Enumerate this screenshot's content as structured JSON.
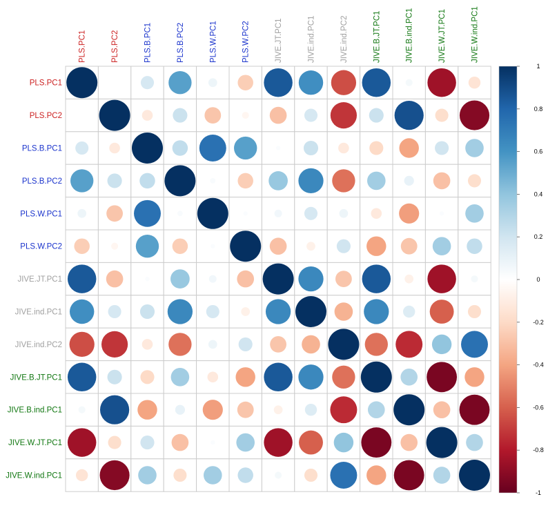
{
  "chart_data": {
    "type": "correlation-matrix",
    "variables": [
      "PLS.PC1",
      "PLS.PC2",
      "PLS.B.PC1",
      "PLS.B.PC2",
      "PLS.W.PC1",
      "PLS.W.PC2",
      "JIVE.JT.PC1",
      "JIVE.ind.PC1",
      "JIVE.ind.PC2",
      "JIVE.B.JT.PC1",
      "JIVE.B.ind.PC1",
      "JIVE.W.JT.PC1",
      "JIVE.W.ind.PC1"
    ],
    "label_colors": [
      "#cc2222",
      "#cc2222",
      "#1a33cc",
      "#1a33cc",
      "#1a33cc",
      "#1a33cc",
      "#a0a0a0",
      "#a0a0a0",
      "#a0a0a0",
      "#117711",
      "#117711",
      "#117711",
      "#117711"
    ],
    "matrix": [
      [
        1.0,
        0.0,
        0.18,
        0.55,
        0.08,
        -0.25,
        0.85,
        0.62,
        -0.65,
        0.85,
        0.05,
        -0.85,
        -0.15
      ],
      [
        0.0,
        1.0,
        -0.12,
        0.22,
        -0.28,
        -0.05,
        -0.3,
        0.18,
        -0.72,
        0.22,
        0.88,
        -0.18,
        -0.92
      ],
      [
        0.18,
        -0.12,
        1.0,
        0.25,
        0.75,
        0.55,
        0.02,
        0.22,
        -0.12,
        -0.2,
        -0.4,
        0.2,
        0.35
      ],
      [
        0.55,
        0.22,
        0.25,
        1.0,
        0.03,
        -0.25,
        0.38,
        0.65,
        -0.55,
        0.35,
        0.1,
        -0.3,
        -0.18
      ],
      [
        0.08,
        -0.28,
        0.75,
        0.03,
        1.0,
        0.02,
        0.06,
        0.18,
        0.08,
        -0.12,
        -0.42,
        0.02,
        0.35
      ],
      [
        -0.25,
        -0.05,
        0.55,
        -0.25,
        0.02,
        1.0,
        -0.3,
        -0.08,
        0.2,
        -0.4,
        -0.28,
        0.35,
        0.25
      ],
      [
        0.85,
        -0.3,
        0.02,
        0.38,
        0.06,
        -0.3,
        1.0,
        0.65,
        -0.28,
        0.85,
        -0.08,
        -0.85,
        0.05
      ],
      [
        0.62,
        0.18,
        0.22,
        0.65,
        0.18,
        -0.08,
        0.65,
        1.0,
        -0.35,
        0.65,
        0.15,
        -0.6,
        -0.18
      ],
      [
        -0.65,
        -0.72,
        -0.12,
        -0.55,
        0.08,
        0.2,
        -0.28,
        -0.35,
        1.0,
        -0.55,
        -0.75,
        0.4,
        0.75
      ],
      [
        0.85,
        0.22,
        -0.2,
        0.35,
        -0.12,
        -0.4,
        0.85,
        0.65,
        -0.55,
        1.0,
        0.3,
        -0.95,
        -0.4
      ],
      [
        0.05,
        0.88,
        -0.4,
        0.1,
        -0.42,
        -0.28,
        -0.08,
        0.15,
        -0.75,
        0.3,
        1.0,
        -0.3,
        -0.95
      ],
      [
        -0.85,
        -0.18,
        0.2,
        -0.3,
        0.02,
        0.35,
        -0.85,
        -0.6,
        0.4,
        -0.95,
        -0.3,
        1.0,
        0.3
      ],
      [
        -0.15,
        -0.92,
        0.35,
        -0.18,
        0.35,
        0.25,
        0.05,
        -0.18,
        0.75,
        -0.4,
        -0.95,
        0.3,
        1.0
      ]
    ],
    "colorbar": {
      "ticks": [
        1,
        0.8,
        0.6,
        0.4,
        0.2,
        0,
        -0.2,
        -0.4,
        -0.6,
        -0.8,
        -1
      ],
      "tick_labels": [
        "1",
        "0.8",
        "0.6",
        "0.4",
        "0.2",
        "0",
        "-0.2",
        "-0.4",
        "-0.6",
        "-0.8",
        "-1"
      ],
      "range": [
        -1,
        1
      ],
      "colors": [
        "#67001F",
        "#B2182B",
        "#D6604D",
        "#F4A582",
        "#FDDBC7",
        "#FFFFFF",
        "#D1E5F0",
        "#92C5DE",
        "#4393C3",
        "#2166AC",
        "#053061"
      ]
    },
    "grid_color": "#cccccc"
  }
}
